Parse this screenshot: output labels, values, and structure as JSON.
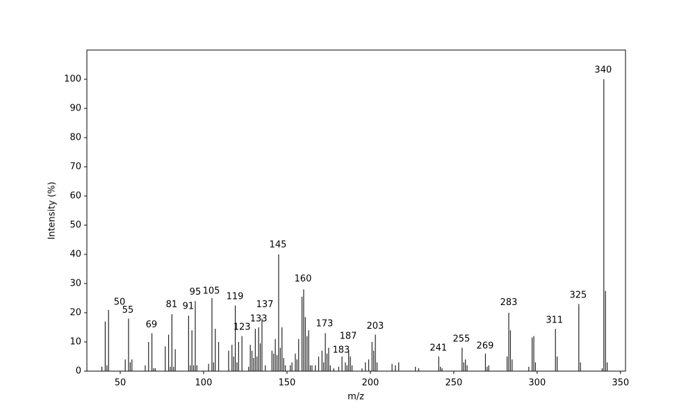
{
  "chart_data": {
    "type": "stem",
    "x_label": "m/z",
    "y_label": "Intensity (%)",
    "color": "#222222",
    "x": [
      39,
      41,
      42,
      43,
      53,
      55,
      56,
      57,
      65,
      67,
      69,
      70,
      71,
      77,
      79,
      80,
      81,
      82,
      83,
      91,
      92,
      93,
      94,
      95,
      96,
      103,
      105,
      106,
      107,
      109,
      115,
      117,
      118,
      119,
      120,
      121,
      123,
      127,
      128,
      129,
      130,
      131,
      132,
      133,
      134,
      135,
      137,
      141,
      142,
      143,
      144,
      145,
      146,
      147,
      148,
      149,
      152,
      153,
      155,
      156,
      157,
      159,
      160,
      161,
      162,
      163,
      164,
      165,
      167,
      169,
      171,
      172,
      173,
      174,
      175,
      176,
      178,
      181,
      183,
      185,
      186,
      187,
      188,
      189,
      195,
      197,
      199,
      201,
      202,
      203,
      204,
      213,
      215,
      217,
      227,
      229,
      241,
      242,
      243,
      255,
      256,
      257,
      258,
      269,
      270,
      271,
      282,
      283,
      284,
      285,
      295,
      297,
      298,
      299,
      311,
      312,
      325,
      326,
      339,
      340,
      341,
      342
    ],
    "values": [
      1.5,
      17,
      2,
      21,
      4,
      18,
      3,
      4,
      2,
      10,
      13,
      1,
      1,
      8.5,
      12.5,
      1.5,
      19.5,
      1.5,
      7.5,
      19,
      2,
      14,
      2,
      24,
      2,
      2.5,
      25,
      3,
      14.5,
      10,
      7,
      9,
      5,
      22.5,
      3,
      10,
      12,
      1.5,
      9,
      7,
      4.5,
      14.5,
      5,
      15,
      9.5,
      18,
      2,
      7,
      6,
      11,
      5.5,
      40,
      8,
      15,
      4.5,
      2,
      2,
      3,
      6,
      4,
      11,
      25.5,
      28,
      18.5,
      12,
      14,
      2,
      2,
      2,
      5,
      7,
      3,
      13,
      6,
      8,
      2,
      1,
      1.5,
      5,
      3,
      2,
      7,
      5,
      2,
      1,
      3,
      4,
      10,
      7,
      12.5,
      3,
      2.5,
      2,
      3,
      1.5,
      1,
      5,
      1.5,
      1,
      8,
      3,
      4,
      2,
      6,
      1.5,
      2,
      5,
      20,
      14,
      4,
      1.5,
      11.5,
      12,
      3,
      14.5,
      5,
      23,
      3,
      1,
      100,
      27.5,
      3
    ],
    "annotations": [
      {
        "text": "50",
        "x": 49.6,
        "y": 23.6
      },
      {
        "text": "55",
        "x": 54.6,
        "y": 20.8
      },
      {
        "text": "69",
        "x": 68.7,
        "y": 15.8
      },
      {
        "text": "81",
        "x": 80.8,
        "y": 22.7
      },
      {
        "text": "91",
        "x": 90.8,
        "y": 22.2
      },
      {
        "text": "95",
        "x": 95,
        "y": 27
      },
      {
        "text": "105",
        "x": 104.6,
        "y": 27.4
      },
      {
        "text": "119",
        "x": 118.8,
        "y": 25.5
      },
      {
        "text": "123",
        "x": 123,
        "y": 15
      },
      {
        "text": "133",
        "x": 133,
        "y": 17.9
      },
      {
        "text": "137",
        "x": 136.7,
        "y": 22.7
      },
      {
        "text": "145",
        "x": 144.6,
        "y": 43.2
      },
      {
        "text": "160",
        "x": 159.6,
        "y": 31.5
      },
      {
        "text": "173",
        "x": 172.5,
        "y": 16.2
      },
      {
        "text": "187",
        "x": 186.7,
        "y": 11.9
      },
      {
        "text": "183",
        "x": 182.5,
        "y": 7.2
      },
      {
        "text": "203",
        "x": 202.9,
        "y": 15.3
      },
      {
        "text": "241",
        "x": 240.8,
        "y": 7.9
      },
      {
        "text": "255",
        "x": 254.6,
        "y": 11
      },
      {
        "text": "269",
        "x": 268.8,
        "y": 8.6
      },
      {
        "text": "283",
        "x": 283,
        "y": 23.4
      },
      {
        "text": "311",
        "x": 310.4,
        "y": 17.4
      },
      {
        "text": "325",
        "x": 324.6,
        "y": 26
      },
      {
        "text": "340",
        "x": 339.6,
        "y": 103.1
      }
    ],
    "xlim": [
      30,
      353
    ],
    "xticks": [
      50,
      100,
      150,
      200,
      250,
      300,
      350
    ],
    "ylim": [
      0,
      110
    ],
    "yticks": [
      0,
      10,
      20,
      30,
      40,
      50,
      60,
      70,
      80,
      90,
      100
    ]
  }
}
